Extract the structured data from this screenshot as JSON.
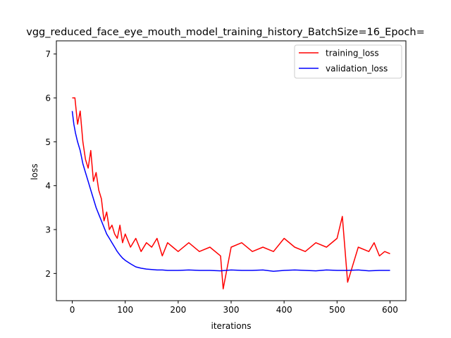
{
  "chart_data": {
    "type": "line",
    "title": "vgg_reduced_face_eye_mouth_model_training_history_BatchSize=16_Epoch=",
    "xlabel": "iterations",
    "ylabel": "loss",
    "xlim": [
      -30,
      630
    ],
    "ylim": [
      1.38,
      7.3
    ],
    "xticks": [
      0,
      100,
      200,
      300,
      400,
      500,
      600
    ],
    "yticks": [
      2,
      3,
      4,
      5,
      6,
      7
    ],
    "grid": false,
    "legend_position": "top-right",
    "series": [
      {
        "name": "training_loss",
        "color": "#ff0000",
        "x": [
          0,
          5,
          10,
          15,
          20,
          25,
          30,
          35,
          40,
          45,
          50,
          55,
          60,
          65,
          70,
          75,
          80,
          85,
          90,
          95,
          100,
          110,
          120,
          130,
          140,
          150,
          160,
          170,
          180,
          190,
          200,
          220,
          240,
          260,
          280,
          285,
          300,
          320,
          340,
          360,
          380,
          400,
          420,
          440,
          460,
          480,
          500,
          510,
          520,
          540,
          560,
          570,
          580,
          590,
          600
        ],
        "y": [
          6.0,
          6.0,
          5.4,
          5.7,
          5.0,
          4.6,
          4.4,
          4.8,
          4.1,
          4.3,
          3.9,
          3.7,
          3.2,
          3.4,
          3.0,
          3.1,
          2.9,
          2.8,
          3.1,
          2.7,
          2.9,
          2.6,
          2.8,
          2.5,
          2.7,
          2.6,
          2.8,
          2.4,
          2.7,
          2.6,
          2.5,
          2.7,
          2.5,
          2.6,
          2.4,
          1.65,
          2.6,
          2.7,
          2.5,
          2.6,
          2.5,
          2.8,
          2.6,
          2.5,
          2.7,
          2.6,
          2.8,
          3.3,
          1.8,
          2.6,
          2.5,
          2.7,
          2.4,
          2.5,
          2.45
        ]
      },
      {
        "name": "validation_loss",
        "color": "#0000ff",
        "x": [
          0,
          3,
          6,
          10,
          15,
          20,
          25,
          30,
          35,
          40,
          45,
          50,
          55,
          60,
          65,
          70,
          75,
          80,
          85,
          90,
          95,
          100,
          110,
          120,
          130,
          140,
          150,
          160,
          170,
          180,
          200,
          220,
          240,
          260,
          280,
          300,
          320,
          340,
          360,
          380,
          400,
          420,
          440,
          460,
          480,
          500,
          520,
          540,
          560,
          580,
          600
        ],
        "y": [
          5.7,
          5.4,
          5.2,
          5.0,
          4.8,
          4.5,
          4.3,
          4.1,
          3.9,
          3.7,
          3.5,
          3.35,
          3.2,
          3.05,
          2.9,
          2.8,
          2.7,
          2.6,
          2.5,
          2.42,
          2.35,
          2.3,
          2.22,
          2.15,
          2.12,
          2.1,
          2.09,
          2.08,
          2.08,
          2.07,
          2.07,
          2.08,
          2.07,
          2.07,
          2.06,
          2.08,
          2.07,
          2.07,
          2.08,
          2.05,
          2.07,
          2.08,
          2.07,
          2.06,
          2.08,
          2.07,
          2.07,
          2.08,
          2.06,
          2.07,
          2.07
        ]
      }
    ]
  }
}
